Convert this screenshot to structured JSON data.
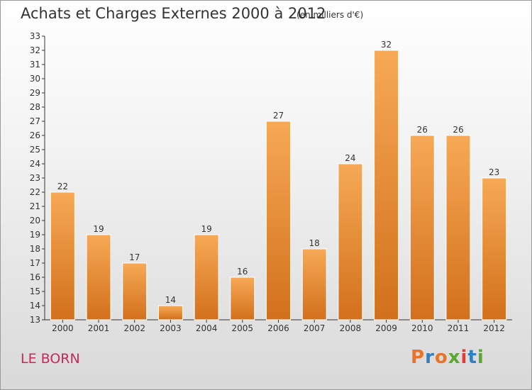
{
  "header": {
    "title": "Achats et Charges Externes 2000 à 2012",
    "subtitle": "(en milliers d'€)"
  },
  "footer": {
    "place": "LE BORN",
    "logo_text": "Proxiti",
    "logo_colors": [
      "#e8742a",
      "#2f7fc1",
      "#e8742a",
      "#5aa832",
      "#e23a3a",
      "#2f7fc1",
      "#5aa832"
    ]
  },
  "colors": {
    "bar_top": "#f7a955",
    "bar_bottom": "#d2701c",
    "axis": "#333333"
  },
  "chart_data": {
    "type": "bar",
    "categories": [
      "2000",
      "2001",
      "2002",
      "2003",
      "2004",
      "2005",
      "2006",
      "2007",
      "2008",
      "2009",
      "2010",
      "2011",
      "2012"
    ],
    "values": [
      22,
      19,
      17,
      14,
      19,
      16,
      27,
      18,
      24,
      32,
      26,
      26,
      23
    ],
    "ylim": [
      13,
      33
    ],
    "yticks": [
      13,
      14,
      15,
      16,
      17,
      18,
      19,
      20,
      21,
      22,
      23,
      24,
      25,
      26,
      27,
      28,
      29,
      30,
      31,
      32,
      33
    ],
    "grid": false,
    "data_labels": true
  }
}
